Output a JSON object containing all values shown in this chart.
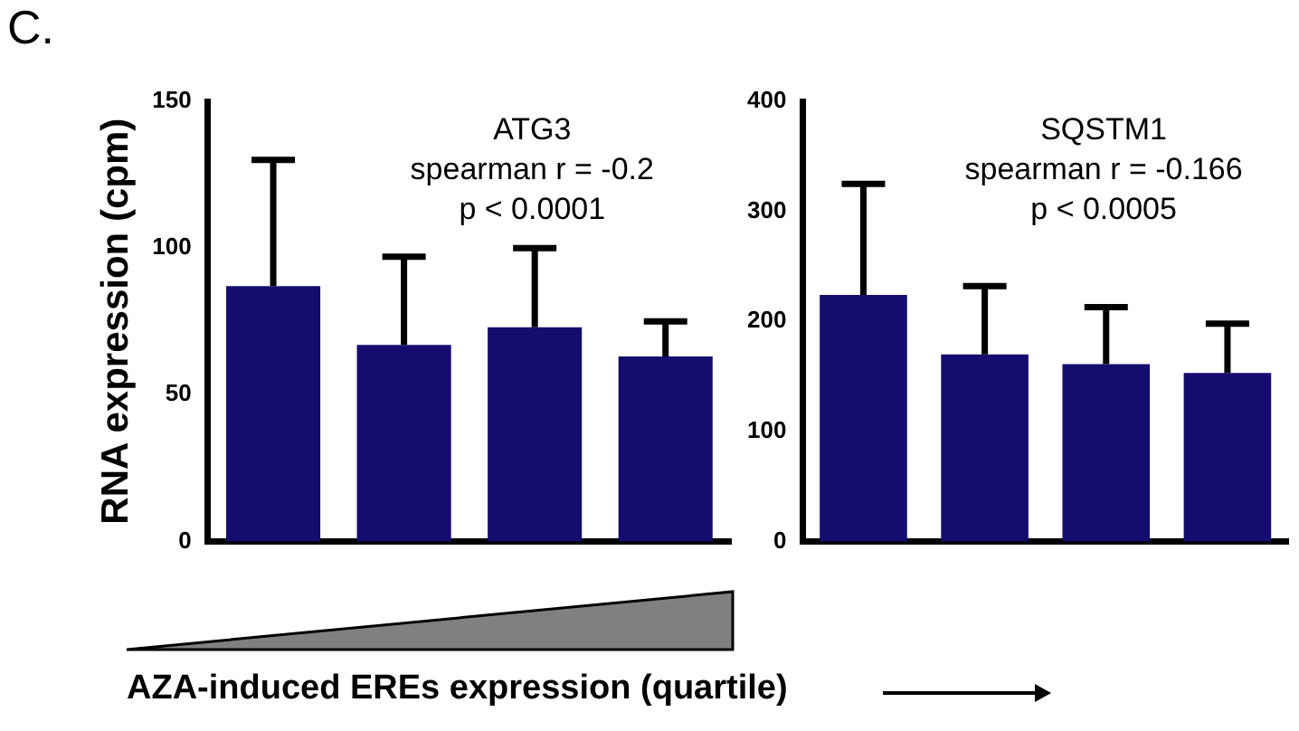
{
  "chart_data": [
    {
      "type": "bar",
      "title": "ATG3",
      "ylabel": "RNA expression (cpm)",
      "xlabel": "AZA-induced EREs expression (quartile)",
      "annotations": [
        "C.",
        "spearman r = -0.2",
        "p < 0.0001"
      ],
      "categories": [
        null,
        null,
        null,
        null
      ],
      "values": [
        87,
        67,
        73,
        63
      ],
      "errors": [
        [
          87,
          130
        ],
        [
          67,
          97
        ],
        [
          73,
          100
        ],
        [
          63,
          75
        ]
      ],
      "color": "#140c6e",
      "ylim": [
        0,
        150
      ],
      "yticks": [
        0,
        50,
        100,
        150
      ],
      "grid": false,
      "legend": false
    },
    {
      "type": "bar",
      "title": "SQSTM1",
      "annotations": [
        "spearman r = -0.166",
        "p < 0.0005"
      ],
      "categories": [
        null,
        null,
        null,
        null
      ],
      "values": [
        224,
        170,
        161,
        153
      ],
      "errors": [
        [
          224,
          325
        ],
        [
          170,
          232
        ],
        [
          161,
          213
        ],
        [
          153,
          198
        ]
      ],
      "color": "#140c6e",
      "ylim": [
        0,
        400
      ],
      "yticks": [
        0,
        100,
        200,
        300,
        400
      ],
      "grid": false,
      "legend": false
    }
  ]
}
